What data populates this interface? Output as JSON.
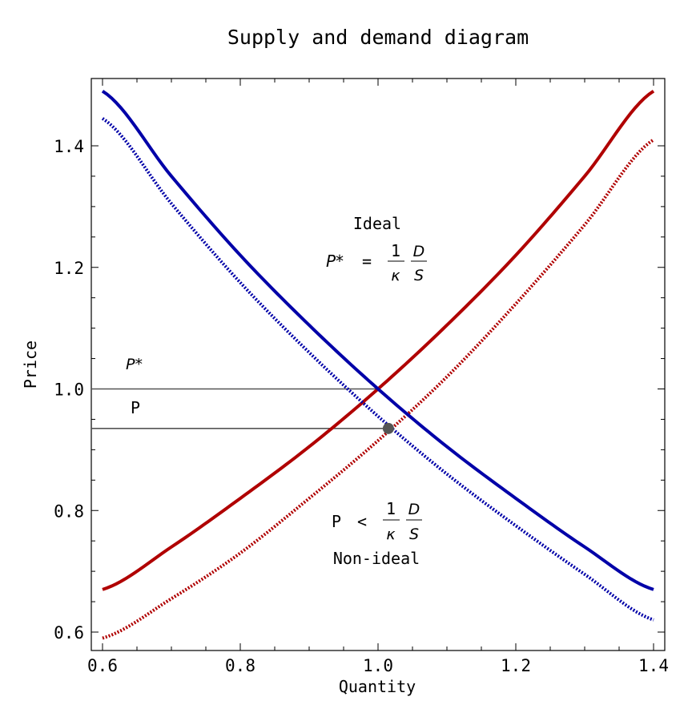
{
  "chart_data": {
    "type": "line",
    "title": "Supply and demand diagram",
    "xlabel": "Quantity",
    "ylabel": "Price",
    "xlim": [
      0.6,
      1.4
    ],
    "ylim": [
      0.6,
      1.4
    ],
    "xticks": [
      "0.6",
      "0.8",
      "1.0",
      "1.2",
      "1.4"
    ],
    "yticks": [
      "0.6",
      "0.8",
      "1.0",
      "1.2",
      "1.4"
    ],
    "grid": false,
    "colors": {
      "supply": "#b00000",
      "demand": "#0000a8",
      "reference": "#555555",
      "marker": "#555555"
    },
    "series": [
      {
        "style": "solid",
        "color": "#b00000",
        "x": [
          0.6,
          0.7,
          0.8,
          0.9,
          1.0,
          1.1,
          1.2,
          1.3,
          1.4
        ],
        "y": [
          0.67,
          0.74,
          0.82,
          0.905,
          1.0,
          1.105,
          1.22,
          1.35,
          1.49
        ]
      },
      {
        "style": "dotted",
        "color": "#b00000",
        "x": [
          0.6,
          0.7,
          0.8,
          0.9,
          1.0,
          1.1,
          1.2,
          1.3,
          1.4
        ],
        "y": [
          0.59,
          0.655,
          0.73,
          0.82,
          0.915,
          1.02,
          1.14,
          1.27,
          1.41
        ]
      },
      {
        "style": "solid",
        "color": "#0000a8",
        "x": [
          0.6,
          0.7,
          0.8,
          0.9,
          1.0,
          1.1,
          1.2,
          1.3,
          1.4
        ],
        "y": [
          1.49,
          1.35,
          1.22,
          1.105,
          1.0,
          0.905,
          0.82,
          0.74,
          0.67
        ]
      },
      {
        "style": "dotted",
        "color": "#0000a8",
        "x": [
          0.6,
          0.7,
          0.8,
          0.9,
          1.0,
          1.1,
          1.2,
          1.3,
          1.4
        ],
        "y": [
          1.445,
          1.305,
          1.175,
          1.06,
          0.955,
          0.86,
          0.775,
          0.695,
          0.62
        ]
      }
    ],
    "reference_lines": [
      {
        "x0": 0.6,
        "x1": 1.0,
        "y": 1.0
      },
      {
        "x0": 0.6,
        "x1": 1.015,
        "y": 0.935
      }
    ],
    "point": {
      "x": 1.015,
      "y": 0.935
    },
    "annotations": {
      "pstar_label": "P*",
      "p_label": "P",
      "ideal_title": "Ideal",
      "ideal_lhs": "P*",
      "ideal_rel": "=",
      "frac_num": "1",
      "frac_den": "κ",
      "ds_num": "D",
      "ds_den": "S",
      "nonideal_lhs": "P",
      "nonideal_rel": "<",
      "nonideal_title": "Non-ideal"
    }
  }
}
